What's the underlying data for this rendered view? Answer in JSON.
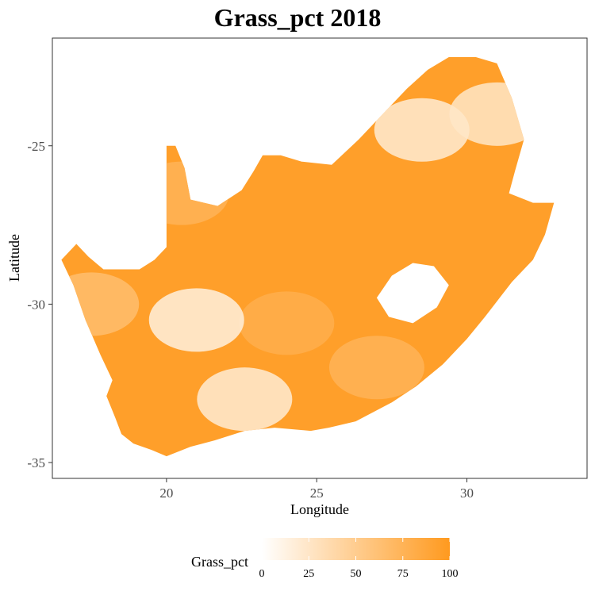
{
  "chart_data": {
    "type": "heatmap",
    "title": "Grass_pct 2018",
    "xlabel": "Longitude",
    "ylabel": "Latitude",
    "xlim": [
      16.2,
      34.0
    ],
    "ylim": [
      -35.5,
      -21.6
    ],
    "x_ticks": [
      20,
      25,
      30
    ],
    "y_ticks": [
      -25,
      -30,
      -35
    ],
    "grid": false,
    "legend": {
      "title": "Grass_pct",
      "position": "bottom",
      "ticks": [
        0,
        25,
        50,
        75,
        100
      ],
      "color_low": "#ffffff",
      "color_high": "#ff9a1f"
    },
    "regions": [
      {
        "lon": 24.0,
        "lat": -30.6,
        "value": 80
      },
      {
        "lon": 21.0,
        "lat": -30.5,
        "value": 15
      },
      {
        "lon": 22.6,
        "lat": -33.0,
        "value": 20
      },
      {
        "lon": 28.5,
        "lat": -24.5,
        "value": 20
      },
      {
        "lon": 31.0,
        "lat": -24.0,
        "value": 25
      },
      {
        "lon": 20.5,
        "lat": -26.5,
        "value": 75
      },
      {
        "lon": 17.5,
        "lat": -30.0,
        "value": 65
      },
      {
        "lon": 27.0,
        "lat": -32.0,
        "value": 75
      }
    ]
  }
}
